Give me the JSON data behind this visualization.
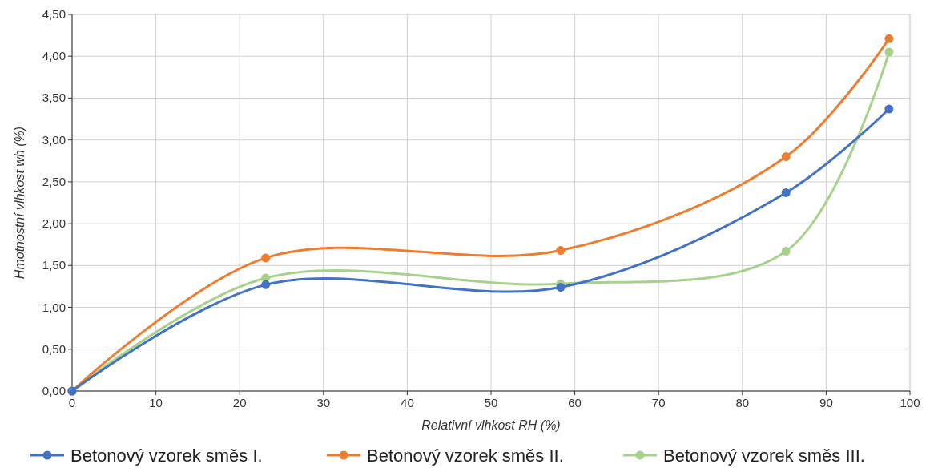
{
  "chart_data": {
    "type": "line",
    "xlabel": "Relativní vlhkost RH (%)",
    "ylabel": "Hmotnostní vlhkost wh (%)",
    "x": [
      0,
      23.1,
      58.3,
      85.2,
      97.5
    ],
    "series": [
      {
        "name": "Betonový vzorek směs I.",
        "color": "#4472c4",
        "values": [
          0,
          1.27,
          1.24,
          2.37,
          3.37
        ]
      },
      {
        "name": "Betonový vzorek směs II.",
        "color": "#ed7d31",
        "values": [
          0,
          1.59,
          1.68,
          2.8,
          4.21
        ]
      },
      {
        "name": "Betonový vzorek směs III.",
        "color": "#a9d18e",
        "values": [
          0,
          1.35,
          1.28,
          1.67,
          4.05
        ]
      }
    ],
    "xlim": [
      0,
      100
    ],
    "xticks": [
      0,
      10,
      20,
      30,
      40,
      50,
      60,
      70,
      80,
      90,
      100
    ],
    "ylim": [
      0,
      4.5
    ],
    "yticks": [
      {
        "value": 0,
        "label": "0,00"
      },
      {
        "value": 0.5,
        "label": "0,50"
      },
      {
        "value": 1,
        "label": "1,00"
      },
      {
        "value": 1.5,
        "label": "1,50"
      },
      {
        "value": 2,
        "label": "2,00"
      },
      {
        "value": 2.5,
        "label": "2,50"
      },
      {
        "value": 3,
        "label": "3,00"
      },
      {
        "value": 3.5,
        "label": "3,50"
      },
      {
        "value": 4,
        "label": "4,00"
      },
      {
        "value": 4.5,
        "label": "4,50"
      }
    ],
    "grid": true,
    "legend": "bottom",
    "marker": "circle",
    "line_style": "solid"
  }
}
